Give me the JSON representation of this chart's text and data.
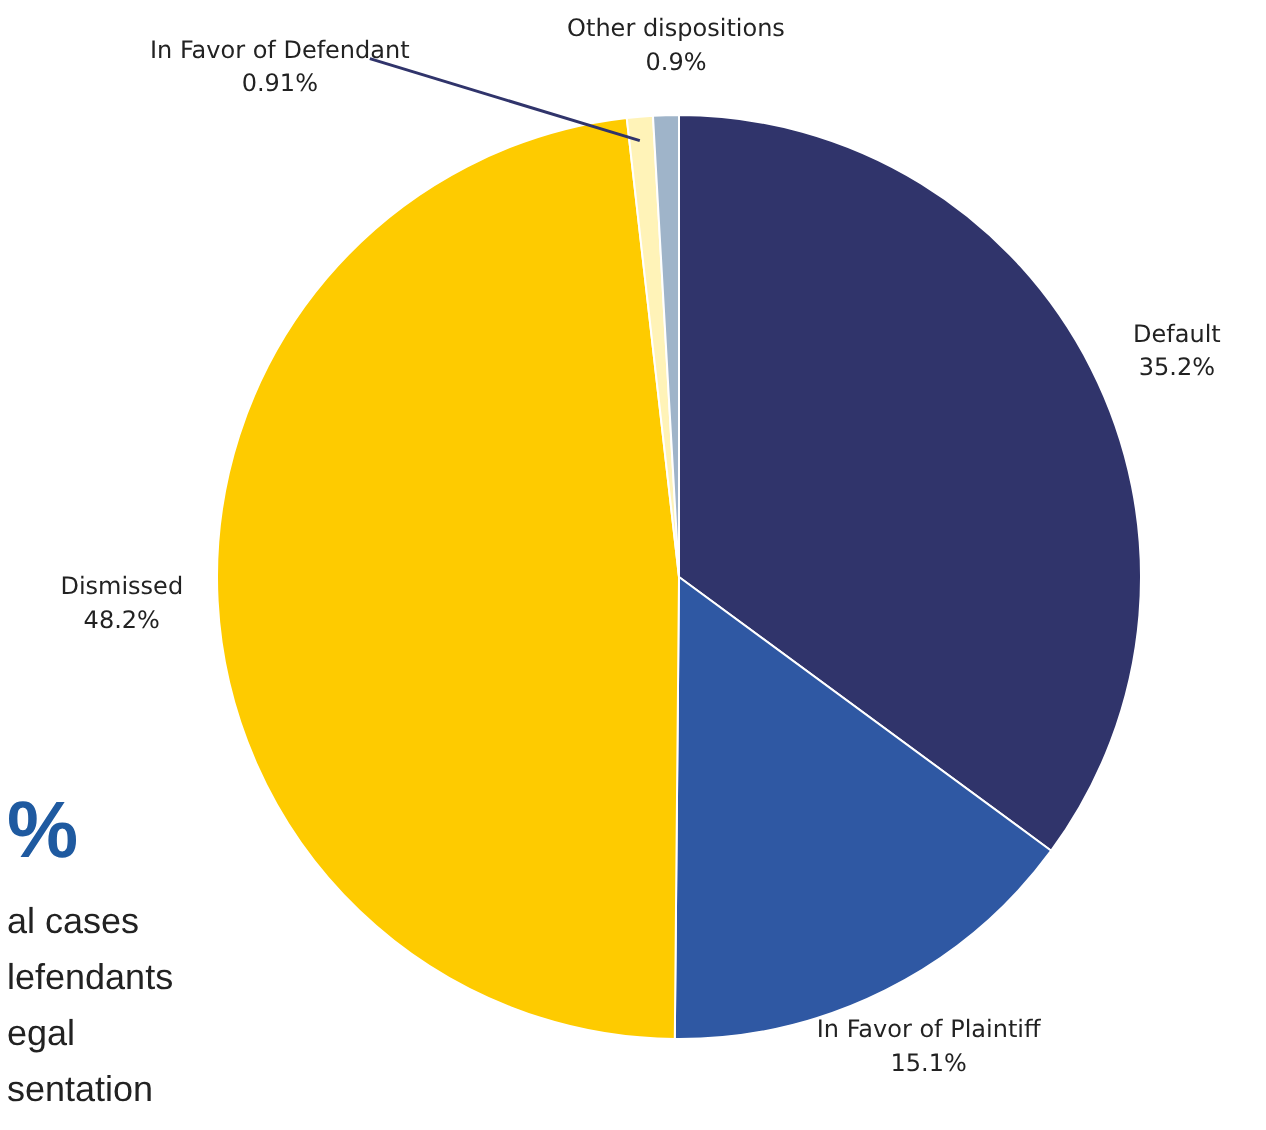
{
  "chart_data": {
    "type": "pie",
    "categories": [
      "Default",
      "In Favor of Plaintiff",
      "Dismissed",
      "In Favor of Defendant",
      "Other dispositions"
    ],
    "values": [
      35.2,
      15.1,
      48.2,
      0.91,
      0.9
    ],
    "colors": [
      "#30346b",
      "#2f58a3",
      "#fecb00",
      "#fff3b8",
      "#9fb4c9"
    ],
    "value_labels": [
      "35.2%",
      "15.1%",
      "48.2%",
      "0.91%",
      "0.9%"
    ],
    "annotations": [
      "%",
      "al cases",
      "lefendants",
      "egal",
      "sentation"
    ]
  }
}
